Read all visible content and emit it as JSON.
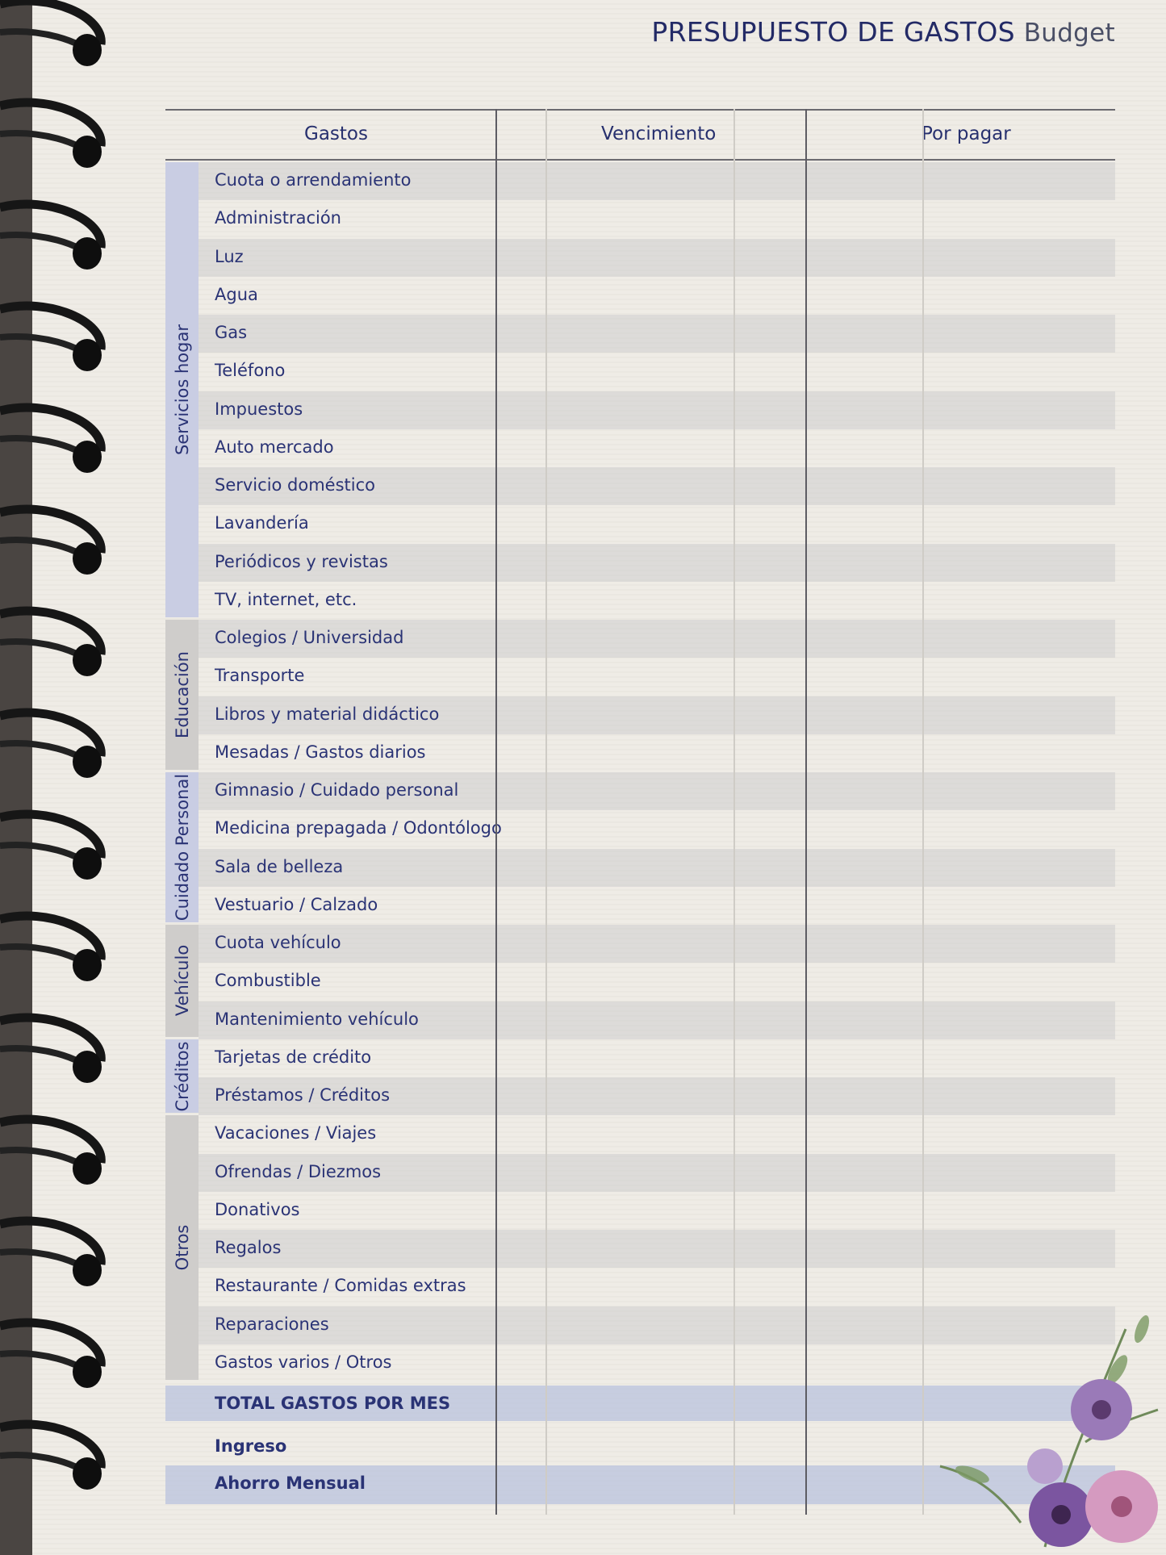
{
  "header": {
    "title_es": "PRESUPUESTO DE GASTOS",
    "title_en": "Budget"
  },
  "columns": [
    "Gastos",
    "Vencimiento",
    "Por pagar"
  ],
  "categories": [
    {
      "name": "Servicios hogar",
      "color": "#c9cde3",
      "items": [
        "Cuota o arrendamiento",
        "Administración",
        "Luz",
        "Agua",
        "Gas",
        "Teléfono",
        "Impuestos",
        "Auto mercado",
        "Servicio doméstico",
        "Lavandería",
        "Periódicos y revistas",
        "TV, internet, etc."
      ]
    },
    {
      "name": "Educación",
      "color": "#cfcdcb",
      "items": [
        "Colegios / Universidad",
        "Transporte",
        "Libros y material didáctico",
        "Mesadas / Gastos diarios"
      ]
    },
    {
      "name": "Cuidado Personal",
      "color": "#c9cde3",
      "items": [
        "Gimnasio / Cuidado personal",
        "Medicina prepagada / Odontólogo",
        "Sala de belleza",
        "Vestuario / Calzado"
      ]
    },
    {
      "name": "Vehículo",
      "color": "#cfcdcb",
      "items": [
        "Cuota vehículo",
        "Combustible",
        "Mantenimiento vehículo"
      ]
    },
    {
      "name": "Créditos",
      "color": "#c9cde3",
      "items": [
        "Tarjetas de crédito",
        "Préstamos / Créditos"
      ]
    },
    {
      "name": "Otros",
      "color": "#cfcdcb",
      "items": [
        "Vacaciones / Viajes",
        "Ofrendas / Diezmos",
        "Donativos",
        "Regalos",
        "Restaurante / Comidas extras",
        "Reparaciones",
        "Gastos varios / Otros"
      ]
    }
  ],
  "totals": [
    "TOTAL GASTOS POR MES",
    "Ingreso",
    "Ahorro Mensual"
  ],
  "colors": {
    "ink": "#27306e",
    "band": "#b9c3de"
  }
}
